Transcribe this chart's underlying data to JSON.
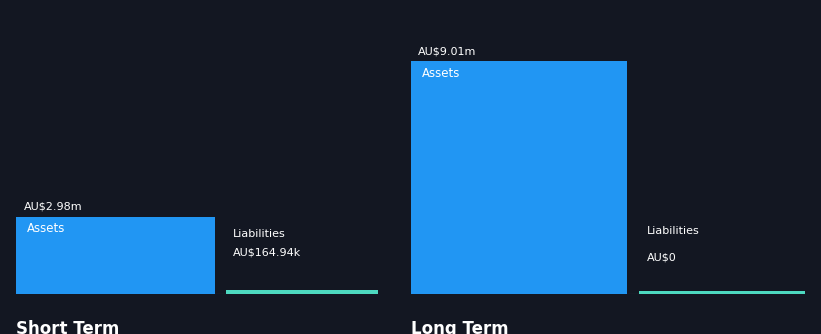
{
  "background_color": "#131722",
  "text_color": "#ffffff",
  "groups": [
    "Short Term",
    "Long Term"
  ],
  "short_term": {
    "assets_value": 2.98,
    "assets_label": "AU$2.98m",
    "assets_color": "#2196F3",
    "liabilities_value": 0.16494,
    "liabilities_label": "AU$164.94k",
    "liabilities_color": "#4DD9C0"
  },
  "long_term": {
    "assets_value": 9.01,
    "assets_label": "AU$9.01m",
    "assets_color": "#2196F3",
    "liabilities_value": 0.0,
    "liabilities_label": "AU$0",
    "liabilities_color": "#4DD9C0"
  },
  "assets_inner_label": "Assets",
  "liabilities_outer_label": "Liabilities",
  "group_label_fontsize": 12,
  "bar_label_fontsize": 8,
  "inner_label_fontsize": 8.5,
  "ylim_max": 9.01,
  "fig_width": 8.21,
  "fig_height": 3.34
}
